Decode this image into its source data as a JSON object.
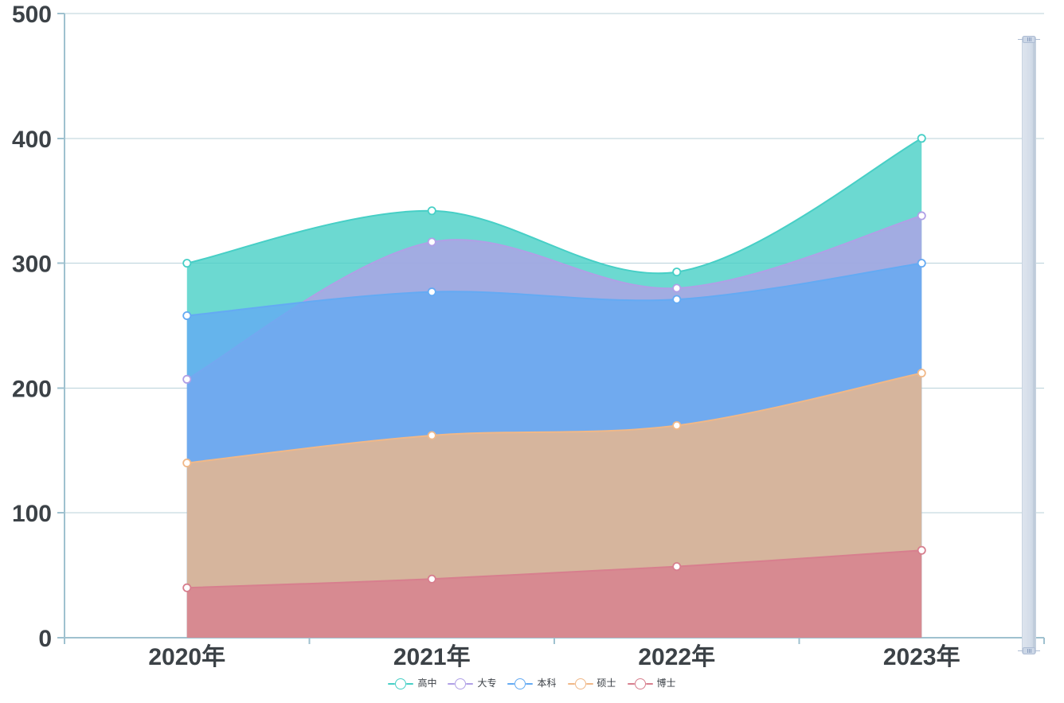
{
  "chart_data": {
    "type": "area",
    "title": "",
    "xlabel": "",
    "ylabel": "",
    "categories": [
      "2020年",
      "2021年",
      "2022年",
      "2023年"
    ],
    "series": [
      {
        "name": "高中",
        "key": "high-school",
        "color": "#47cfc6",
        "values": [
          300,
          342,
          293,
          400
        ]
      },
      {
        "name": "大专",
        "key": "associate",
        "color": "#b0a0e6",
        "values": [
          207,
          317,
          280,
          338
        ]
      },
      {
        "name": "本科",
        "key": "bachelor",
        "color": "#64aaf3",
        "values": [
          258,
          277,
          271,
          300
        ]
      },
      {
        "name": "硕士",
        "key": "master",
        "color": "#f0b888",
        "values": [
          140,
          162,
          170,
          212
        ]
      },
      {
        "name": "博士",
        "key": "doctorate",
        "color": "#d77f8e",
        "values": [
          40,
          47,
          57,
          70
        ]
      }
    ],
    "ylim": [
      0,
      500
    ],
    "y_ticks": [
      0,
      100,
      200,
      300,
      400,
      500
    ],
    "grid": true,
    "smooth": true,
    "stacked": false,
    "area_opacity": 0.8,
    "marker": "hollow-circle",
    "legend_position": "bottom",
    "axis_color": "#9fc1cf",
    "gridline_color": "#b9d1da",
    "label_color": "#3c4247"
  }
}
